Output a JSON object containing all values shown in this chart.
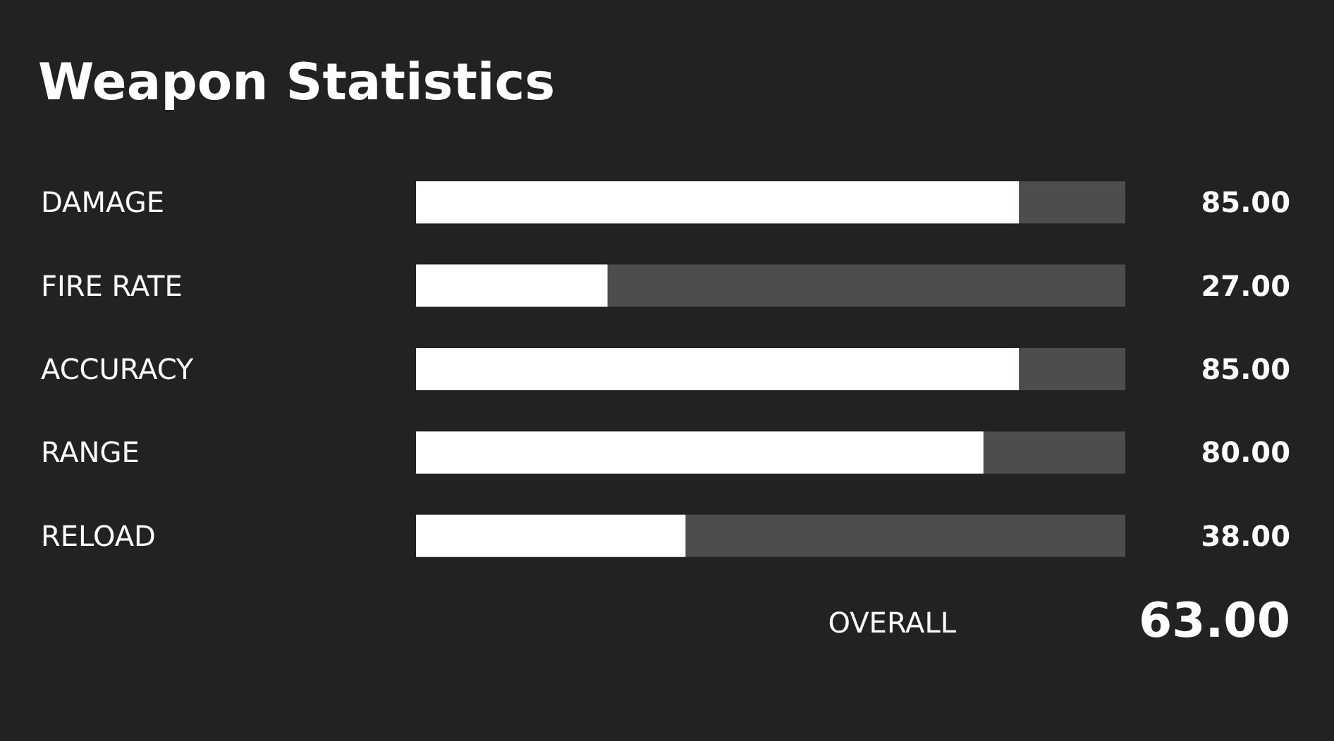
{
  "chart_data": {
    "type": "bar",
    "orientation": "horizontal",
    "title": "Weapon Statistics",
    "categories": [
      "DAMAGE",
      "FIRE RATE",
      "ACCURACY",
      "RANGE",
      "RELOAD"
    ],
    "values": [
      85,
      27,
      85,
      80,
      38
    ],
    "value_labels": [
      "85.00",
      "27.00",
      "85.00",
      "80.00",
      "38.00"
    ],
    "color": "#ffffff",
    "xlim": [
      0,
      100
    ],
    "tick_labels": "y",
    "annotations": [
      "OVERALL",
      "63.00"
    ]
  }
}
